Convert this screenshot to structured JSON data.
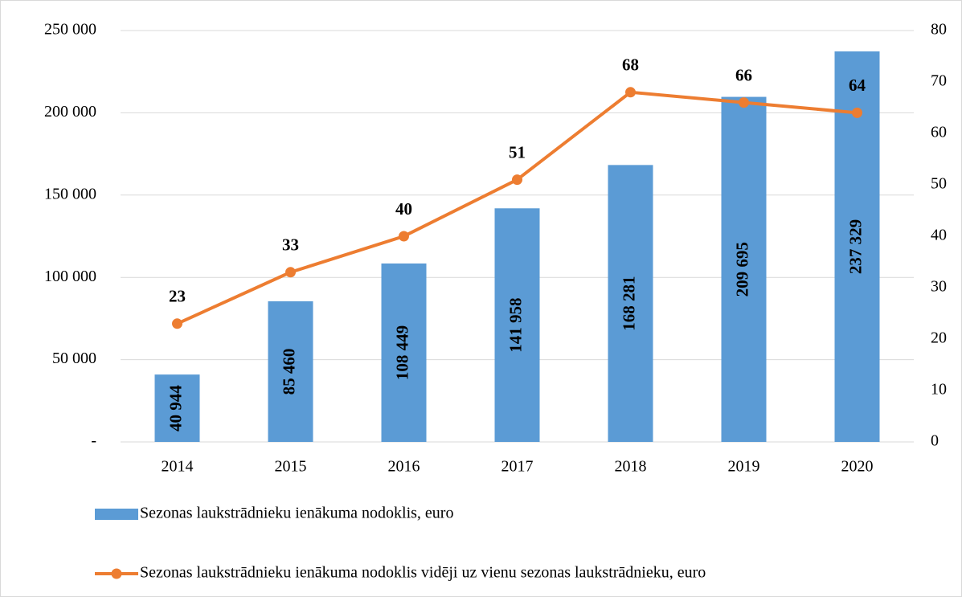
{
  "chart_data": {
    "type": "bar_line",
    "categories": [
      "2014",
      "2015",
      "2016",
      "2017",
      "2018",
      "2019",
      "2020"
    ],
    "series": [
      {
        "name": "Sezonas laukstrādnieku ienākuma nodoklis, euro",
        "type": "bar",
        "color": "#5b9bd5",
        "values": [
          40944,
          85460,
          108449,
          141958,
          168281,
          209695,
          237329
        ],
        "value_labels": [
          "40 944",
          "85 460",
          "108 449",
          "141 958",
          "168 281",
          "209 695",
          "237 329"
        ]
      },
      {
        "name": "Sezonas laukstrādnieku ienākuma nodoklis vidēji uz vienu sezonas laukstrādnieku, euro",
        "type": "line",
        "axis": "y2",
        "color": "#ed7d31",
        "values": [
          23,
          33,
          40,
          51,
          68,
          66,
          64
        ]
      }
    ],
    "ylim": [
      0,
      250000
    ],
    "yticks": [
      {
        "value": 0,
        "label": "-"
      },
      {
        "value": 50000,
        "label": "50 000"
      },
      {
        "value": 100000,
        "label": "100 000"
      },
      {
        "value": 150000,
        "label": "150 000"
      },
      {
        "value": 200000,
        "label": "200 000"
      },
      {
        "value": 250000,
        "label": "250 000"
      }
    ],
    "y2lim": [
      0,
      80
    ],
    "y2ticks": [
      0,
      10,
      20,
      30,
      40,
      50,
      60,
      70,
      80
    ],
    "grid": true
  }
}
